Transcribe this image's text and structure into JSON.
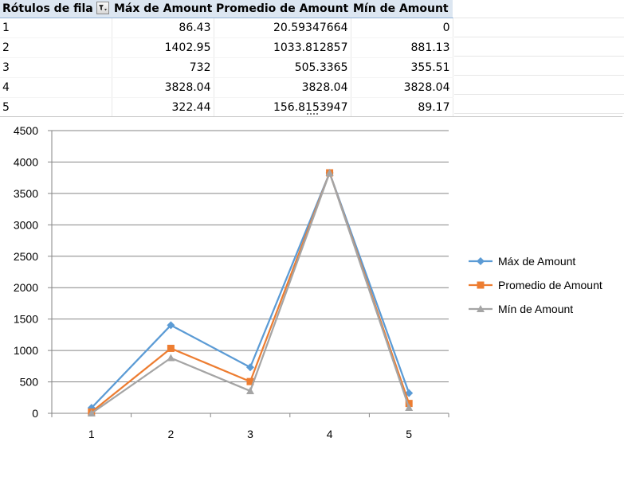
{
  "table": {
    "headers": [
      "Rótulos de fila",
      "Máx de Amount",
      "Promedio de Amount",
      "Mín de Amount"
    ],
    "rows": [
      [
        "1",
        "86.43",
        "20.59347664",
        "0"
      ],
      [
        "2",
        "1402.95",
        "1033.812857",
        "881.13"
      ],
      [
        "3",
        "732",
        "505.3365",
        "355.51"
      ],
      [
        "4",
        "3828.04",
        "3828.04",
        "3828.04"
      ],
      [
        "5",
        "322.44",
        "156.8153947",
        "89.17"
      ]
    ]
  },
  "chart_data": {
    "type": "line",
    "categories": [
      "1",
      "2",
      "3",
      "4",
      "5"
    ],
    "series": [
      {
        "name": "Máx de Amount",
        "values": [
          86.43,
          1402.95,
          732,
          3828.04,
          322.44
        ],
        "color": "#5b9bd5",
        "marker": "diamond"
      },
      {
        "name": "Promedio de Amount",
        "values": [
          20.59347664,
          1033.812857,
          505.3365,
          3828.04,
          156.8153947
        ],
        "color": "#ed7d31",
        "marker": "square"
      },
      {
        "name": "Mín de Amount",
        "values": [
          0,
          881.13,
          355.51,
          3828.04,
          89.17
        ],
        "color": "#a5a5a5",
        "marker": "triangle"
      }
    ],
    "ylim": [
      0,
      4500
    ],
    "yticks": [
      0,
      500,
      1000,
      1500,
      2000,
      2500,
      3000,
      3500,
      4000,
      4500
    ],
    "grid": true,
    "legend": "right"
  }
}
